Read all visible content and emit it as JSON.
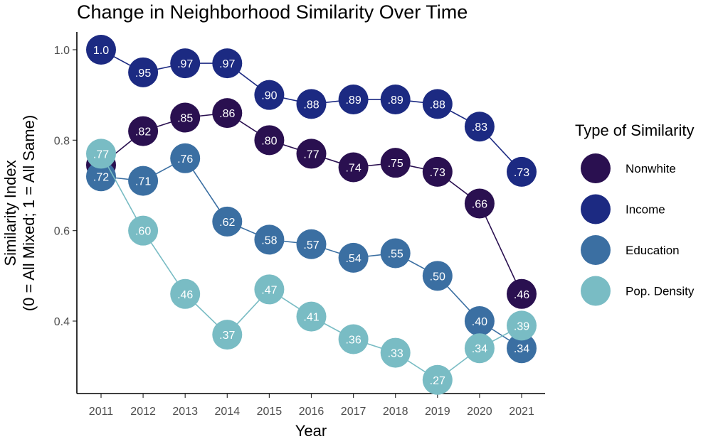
{
  "chart_data": {
    "type": "line",
    "title": "Change in Neighborhood Similarity Over Time",
    "xlabel": "Year",
    "ylabel": [
      "Similarity Index",
      "(0 = All Mixed; 1 = All Same)"
    ],
    "x": [
      2011,
      2012,
      2013,
      2014,
      2015,
      2016,
      2017,
      2018,
      2019,
      2020,
      2021
    ],
    "x_tick_labels": [
      "2011",
      "2012",
      "2013",
      "2014",
      "2015",
      "2016",
      "2017",
      "2018",
      "2019",
      "2020",
      "2021"
    ],
    "y_ticks": [
      0.4,
      0.6,
      0.8,
      1.0
    ],
    "y_tick_labels": [
      "0.4",
      "0.6",
      "0.8",
      "1.0"
    ],
    "ylim": [
      0.264,
      1.02
    ],
    "grid": false,
    "legend": {
      "title": "Type of Similarity",
      "position": "right"
    },
    "series": [
      {
        "name": "Nonwhite",
        "color": "#2a1050",
        "values": [
          0.745,
          0.82,
          0.85,
          0.86,
          0.8,
          0.77,
          0.74,
          0.75,
          0.73,
          0.66,
          0.46
        ],
        "labels": [
          "",
          ".82",
          ".85",
          ".86",
          ".80",
          ".77",
          ".74",
          ".75",
          ".73",
          ".66",
          ".46"
        ]
      },
      {
        "name": "Income",
        "color": "#1c2a82",
        "values": [
          1.0,
          0.95,
          0.97,
          0.97,
          0.9,
          0.88,
          0.89,
          0.89,
          0.88,
          0.83,
          0.73
        ],
        "labels": [
          "1.0",
          ".95",
          ".97",
          ".97",
          ".90",
          ".88",
          ".89",
          ".89",
          ".88",
          ".83",
          ".73"
        ]
      },
      {
        "name": "Education",
        "color": "#3b6fa2",
        "values": [
          0.72,
          0.71,
          0.76,
          0.62,
          0.58,
          0.57,
          0.54,
          0.55,
          0.5,
          0.4,
          0.34
        ],
        "labels": [
          ".72",
          ".71",
          ".76",
          ".62",
          ".58",
          ".57",
          ".54",
          ".55",
          ".50",
          ".40",
          ".34"
        ]
      },
      {
        "name": "Pop. Density",
        "color": "#79bcc4",
        "values": [
          0.77,
          0.6,
          0.46,
          0.37,
          0.47,
          0.41,
          0.36,
          0.33,
          0.27,
          0.34,
          0.39
        ],
        "labels": [
          ".77",
          ".60",
          ".46",
          ".37",
          ".47",
          ".41",
          ".36",
          ".33",
          ".27",
          ".34",
          ".39"
        ]
      }
    ]
  }
}
